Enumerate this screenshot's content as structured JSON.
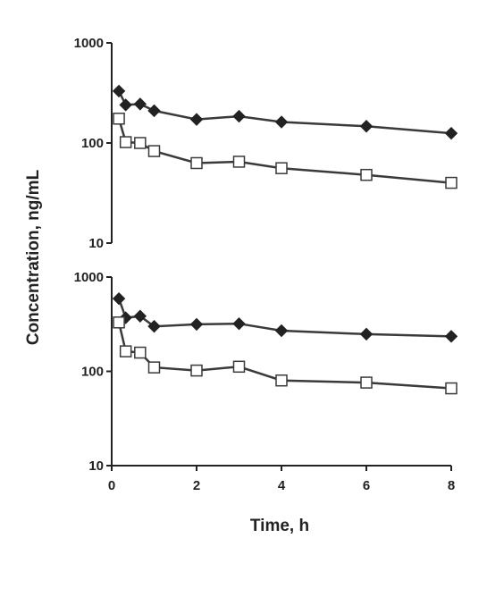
{
  "chart_data": [
    {
      "type": "line",
      "panel": "top",
      "yscale": "log",
      "ylim": [
        10,
        1000
      ],
      "xlim": [
        0,
        8
      ],
      "yticks": [
        "10",
        "100",
        "1000"
      ],
      "series": [
        {
          "marker": "filled-diamond",
          "x": [
            0.17,
            0.33,
            0.67,
            1.0,
            2.0,
            3.0,
            4.0,
            6.0,
            8.0
          ],
          "y": [
            330,
            240,
            245,
            210,
            172,
            185,
            162,
            147,
            125
          ]
        },
        {
          "marker": "open-square",
          "x": [
            0.17,
            0.33,
            0.67,
            1.0,
            2.0,
            3.0,
            4.0,
            6.0,
            8.0
          ],
          "y": [
            175,
            102,
            100,
            83,
            63,
            65,
            56,
            48,
            40
          ]
        }
      ]
    },
    {
      "type": "line",
      "panel": "bottom",
      "yscale": "log",
      "ylim": [
        10,
        1000
      ],
      "xlim": [
        0,
        8
      ],
      "yticks": [
        "10",
        "100",
        "1000"
      ],
      "xticks": [
        "0",
        "2",
        "4",
        "6",
        "8"
      ],
      "xlabel": "Time, h",
      "series": [
        {
          "marker": "filled-diamond",
          "x": [
            0.17,
            0.33,
            0.67,
            1.0,
            2.0,
            3.0,
            4.0,
            6.0,
            8.0
          ],
          "y": [
            590,
            370,
            385,
            300,
            315,
            320,
            270,
            248,
            235
          ]
        },
        {
          "marker": "open-square",
          "x": [
            0.17,
            0.33,
            0.67,
            1.0,
            2.0,
            3.0,
            4.0,
            6.0,
            8.0
          ],
          "y": [
            330,
            163,
            158,
            110,
            102,
            112,
            80,
            76,
            66
          ]
        }
      ]
    }
  ],
  "shared": {
    "ylabel": "Concentration, ng/mL"
  },
  "colors": {
    "ink": "#222222",
    "line": "#3a3a3a",
    "marker_fill_open": "#ffffff"
  }
}
